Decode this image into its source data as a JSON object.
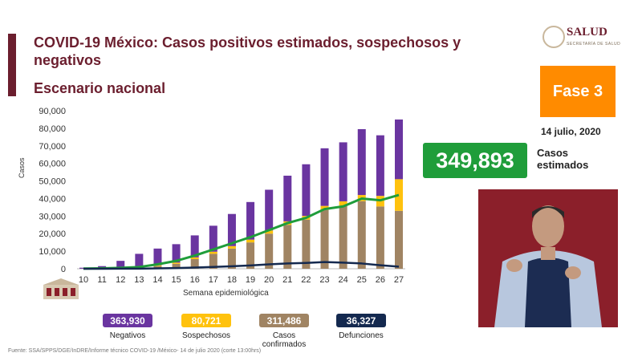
{
  "header": {
    "title": "COVID-19 México: Casos positivos estimados, sospechosos y negativos",
    "subtitle": "Escenario nacional"
  },
  "logo": {
    "text": "SALUD",
    "subtext": "SECRETARÍA DE SALUD"
  },
  "phase_label": "Fase 3",
  "date": "14 julio, 2020",
  "estimated": {
    "value": "349,893",
    "label": "Casos estimados"
  },
  "stats": [
    {
      "value": "363,930",
      "label": "Negativos",
      "color": "#6a35a0"
    },
    {
      "value": "80,721",
      "label": "Sospechosos",
      "color": "#ffc20e"
    },
    {
      "value": "311,486",
      "label": "Casos confirmados",
      "color": "#a08463"
    },
    {
      "value": "36,327",
      "label": "Defunciones",
      "color": "#14294f"
    }
  ],
  "footer": "Fuente: SSA/SPPS/DGE/InDRE/Informe técnico COVID-19 /México- 14 de julio 2020 (corte 13:00hrs)",
  "colors": {
    "accent": "#6b1e2e",
    "negativos": "#6a35a0",
    "sospechosos": "#ffc20e",
    "confirmados": "#a08463",
    "estimados": "#1f9d3a",
    "defunciones": "#14294f"
  },
  "chart_data": {
    "type": "bar",
    "xlabel": "Semana epidemiológica",
    "ylabel": "Casos",
    "ylim": [
      0,
      90000
    ],
    "yticks": [
      "0",
      "10,000",
      "20,000",
      "30,000",
      "40,000",
      "50,000",
      "60,000",
      "70,000",
      "80,000",
      "90,000"
    ],
    "categories": [
      "10",
      "11",
      "12",
      "13",
      "14",
      "15",
      "16",
      "17",
      "18",
      "19",
      "20",
      "21",
      "22",
      "23",
      "24",
      "25",
      "26",
      "27"
    ],
    "stacked_bars": {
      "confirmados": [
        50,
        200,
        500,
        1000,
        1500,
        2800,
        5500,
        8500,
        11500,
        15000,
        20000,
        25000,
        28000,
        33500,
        36000,
        38500,
        35500,
        33000
      ],
      "sospechosos": [
        20,
        50,
        150,
        300,
        500,
        700,
        1000,
        1200,
        1400,
        1600,
        1800,
        2000,
        2100,
        2300,
        2400,
        3500,
        6000,
        18000
      ],
      "negativos": [
        530,
        1250,
        3850,
        7200,
        9500,
        10500,
        12500,
        14800,
        18300,
        21400,
        23200,
        26000,
        29400,
        32800,
        33600,
        37500,
        34500,
        34000
      ]
    },
    "lines": {
      "estimados": [
        100,
        200,
        500,
        1000,
        2500,
        4500,
        7500,
        11000,
        14500,
        18000,
        22000,
        26000,
        29000,
        34000,
        35500,
        40000,
        39000,
        42000
      ],
      "defunciones": [
        0,
        10,
        30,
        80,
        200,
        400,
        700,
        1000,
        1400,
        1900,
        2500,
        3000,
        3300,
        3800,
        3500,
        3000,
        2000,
        1200
      ]
    },
    "legend": "none",
    "grid": false
  }
}
